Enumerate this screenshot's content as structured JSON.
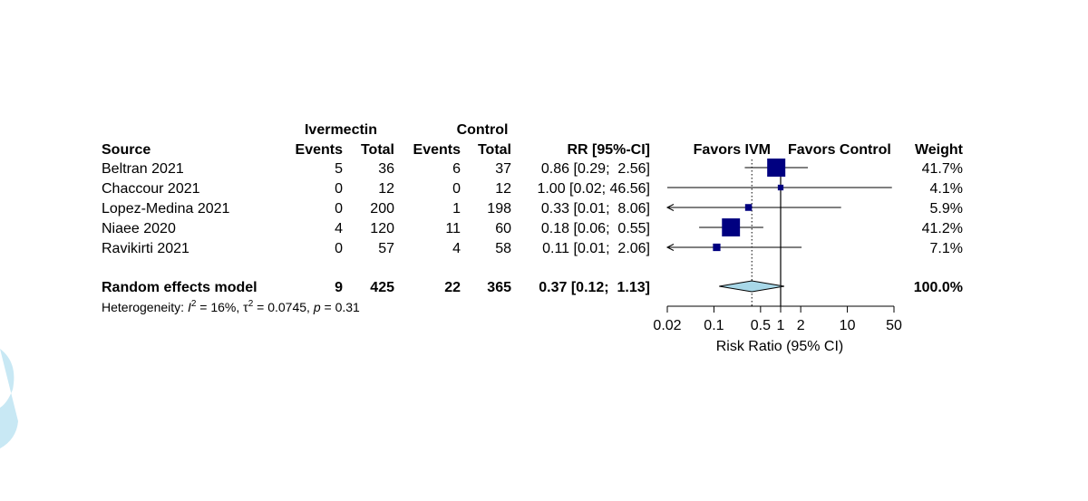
{
  "chart_data": {
    "type": "forest",
    "group_labels": {
      "treatment": "Ivermectin",
      "control": "Control"
    },
    "columns": {
      "source": "Source",
      "treat_events": "Events",
      "treat_total": "Total",
      "ctrl_events": "Events",
      "ctrl_total": "Total",
      "rr": "RR [95%-CI]",
      "favors_left": "Favors IVM",
      "favors_right": "Favors Control",
      "weight": "Weight"
    },
    "studies": [
      {
        "source": "Beltran 2021",
        "treat_events": "5",
        "treat_total": "36",
        "ctrl_events": "6",
        "ctrl_total": "37",
        "rr_text": "0.86 [0.29;  2.56]",
        "rr": 0.86,
        "lo": 0.29,
        "hi": 2.56,
        "weight_text": "41.7%",
        "weight": 41.7,
        "arrow_left": false
      },
      {
        "source": "Chaccour 2021",
        "treat_events": "0",
        "treat_total": "12",
        "ctrl_events": "0",
        "ctrl_total": "12",
        "rr_text": "1.00 [0.02; 46.56]",
        "rr": 1.0,
        "lo": 0.02,
        "hi": 46.56,
        "weight_text": "4.1%",
        "weight": 4.1,
        "arrow_left": false
      },
      {
        "source": "Lopez-Medina 2021",
        "treat_events": "0",
        "treat_total": "200",
        "ctrl_events": "1",
        "ctrl_total": "198",
        "rr_text": "0.33 [0.01;  8.06]",
        "rr": 0.33,
        "lo": 0.01,
        "hi": 8.06,
        "weight_text": "5.9%",
        "weight": 5.9,
        "arrow_left": true
      },
      {
        "source": "Niaee 2020",
        "treat_events": "4",
        "treat_total": "120",
        "ctrl_events": "11",
        "ctrl_total": "60",
        "rr_text": "0.18 [0.06;  0.55]",
        "rr": 0.18,
        "lo": 0.06,
        "hi": 0.55,
        "weight_text": "41.2%",
        "weight": 41.2,
        "arrow_left": false
      },
      {
        "source": "Ravikirti 2021",
        "treat_events": "0",
        "treat_total": "57",
        "ctrl_events": "4",
        "ctrl_total": "58",
        "rr_text": "0.11 [0.01;  2.06]",
        "rr": 0.11,
        "lo": 0.01,
        "hi": 2.06,
        "weight_text": "7.1%",
        "weight": 7.1,
        "arrow_left": true
      }
    ],
    "summary": {
      "source": "Random effects model",
      "treat_events": "9",
      "treat_total": "425",
      "ctrl_events": "22",
      "ctrl_total": "365",
      "rr_text": "0.37 [0.12;  1.13]",
      "rr": 0.37,
      "lo": 0.12,
      "hi": 1.13,
      "weight_text": "100.0%"
    },
    "heterogeneity": {
      "prefix": "Heterogeneity: ",
      "i2": "I",
      "i2_value": " = 16%, ",
      "tau": "τ",
      "tau_value": " = 0.0745, ",
      "p": "p",
      "p_value": " = 0.31",
      "sup": "2"
    },
    "axis": {
      "scale": "log",
      "ticks": [
        0.02,
        0.1,
        0.5,
        1,
        2,
        10,
        50
      ],
      "tick_labels": [
        "0.02",
        "0.1",
        "0.5",
        "1",
        "2",
        "10",
        "50"
      ],
      "xlim": [
        0.02,
        50
      ],
      "xlabel": "Risk Ratio (95% CI)",
      "null_value": 1
    },
    "colors": {
      "box": "#000080",
      "diamond_fill": "#a8d8e8",
      "line": "#000000",
      "deco": "#c8e8f4"
    }
  }
}
